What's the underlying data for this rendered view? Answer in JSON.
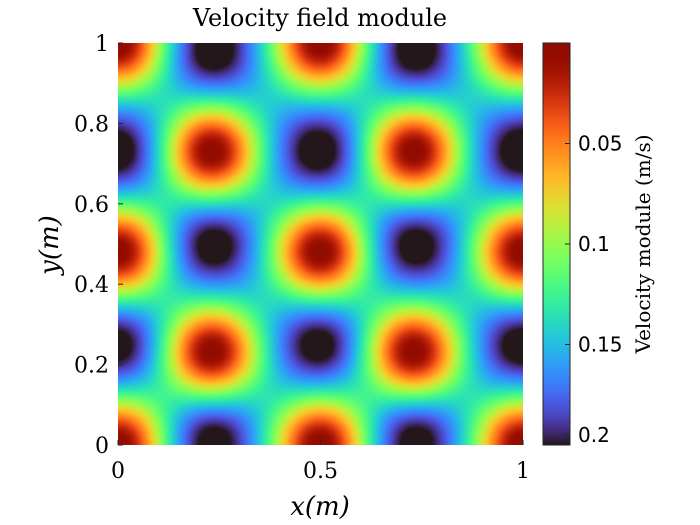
{
  "chart_data": {
    "type": "heatmap",
    "title": "Velocity field module",
    "xlabel": "x(m)",
    "ylabel": "y(m)",
    "xlim": [
      0,
      1
    ],
    "ylim": [
      0,
      1
    ],
    "x_ticks": [
      {
        "value": 0,
        "label": "0"
      },
      {
        "value": 0.5,
        "label": "0.5"
      },
      {
        "value": 1,
        "label": "1"
      }
    ],
    "y_ticks": [
      {
        "value": 0,
        "label": "0"
      },
      {
        "value": 0.2,
        "label": "0.2"
      },
      {
        "value": 0.4,
        "label": "0.4"
      },
      {
        "value": 0.6,
        "label": "0.6"
      },
      {
        "value": 0.8,
        "label": "0.8"
      },
      {
        "value": 1,
        "label": "1"
      }
    ],
    "colorbar": {
      "label": "Velocity module (m/s)",
      "range": [
        0,
        0.2
      ],
      "direction": "reversed",
      "colormap": "turbo",
      "ticks": [
        {
          "value": 0.05,
          "label": "0.05"
        },
        {
          "value": 0.1,
          "label": "0.1"
        },
        {
          "value": 0.15,
          "label": "0.15"
        },
        {
          "value": 0.2,
          "label": "0.2"
        }
      ]
    },
    "field": {
      "minima_locations": [
        {
          "x": 0.23,
          "y": 0.73
        },
        {
          "x": 0.73,
          "y": 0.73
        },
        {
          "x": 0.23,
          "y": 0.23
        },
        {
          "x": 0.73,
          "y": 0.23
        },
        {
          "x": 0.0,
          "y": 0.48
        },
        {
          "x": 0.5,
          "y": 0.48
        },
        {
          "x": 1.0,
          "y": 0.48
        },
        {
          "x": 0.0,
          "y": 1.0
        },
        {
          "x": 0.5,
          "y": 1.0
        },
        {
          "x": 1.0,
          "y": 1.0
        },
        {
          "x": 0.0,
          "y": 0.0
        },
        {
          "x": 0.5,
          "y": 0.0
        },
        {
          "x": 1.0,
          "y": 0.0
        }
      ],
      "maxima_locations": [
        {
          "x": 0.23,
          "y": 0.98
        },
        {
          "x": 0.73,
          "y": 0.98
        },
        {
          "x": 0.0,
          "y": 0.73
        },
        {
          "x": 0.5,
          "y": 0.73
        },
        {
          "x": 1.0,
          "y": 0.73
        },
        {
          "x": 0.23,
          "y": 0.5
        },
        {
          "x": 0.73,
          "y": 0.5
        },
        {
          "x": 0.0,
          "y": 0.25
        },
        {
          "x": 0.5,
          "y": 0.25
        },
        {
          "x": 1.0,
          "y": 0.25
        },
        {
          "x": 0.23,
          "y": 0.02
        },
        {
          "x": 0.73,
          "y": 0.02
        }
      ],
      "min_value": 0.0,
      "max_value": 0.2,
      "background_value": 0.16
    }
  }
}
